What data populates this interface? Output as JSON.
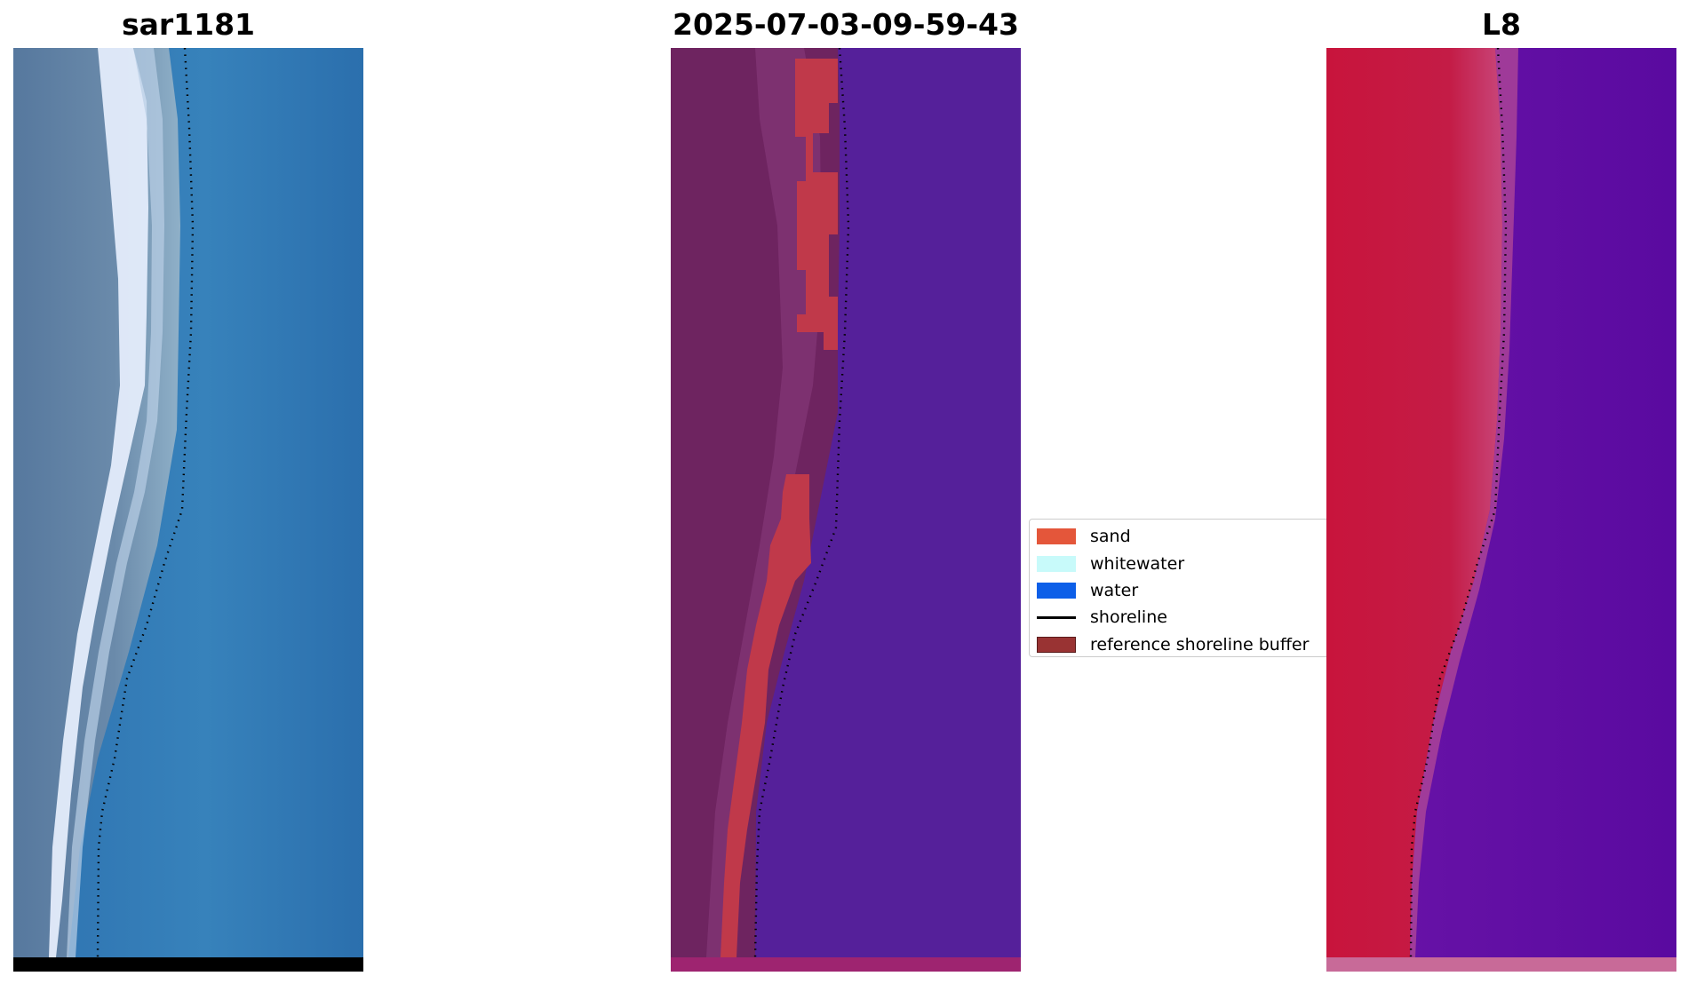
{
  "panels": [
    {
      "title": "sar1181"
    },
    {
      "title": "2025-07-03-09-59-43"
    },
    {
      "title": "L8"
    }
  ],
  "legend": {
    "items": [
      {
        "label": "sand",
        "color": "#e4563a"
      },
      {
        "label": "whitewater",
        "color": "#c8fafa"
      },
      {
        "label": "water",
        "color": "#0d5fe8"
      },
      {
        "label": "shoreline",
        "color": "#000000"
      },
      {
        "label": "reference shoreline buffer",
        "color": "#993333"
      }
    ]
  },
  "colors": {
    "rgb_water": "#3278b4",
    "rgb_land": "#4e7aa2",
    "rgb_surf": "#dfe9fb",
    "class_water": "#55209a",
    "class_land": "#6e2460",
    "class_sand": "#c0394a",
    "class_strip": "#9e2470",
    "swir_land": "#c8143c",
    "swir_water": "#5c0aa0",
    "swir_strip": "#c86a98",
    "strip_black": "#000000"
  }
}
